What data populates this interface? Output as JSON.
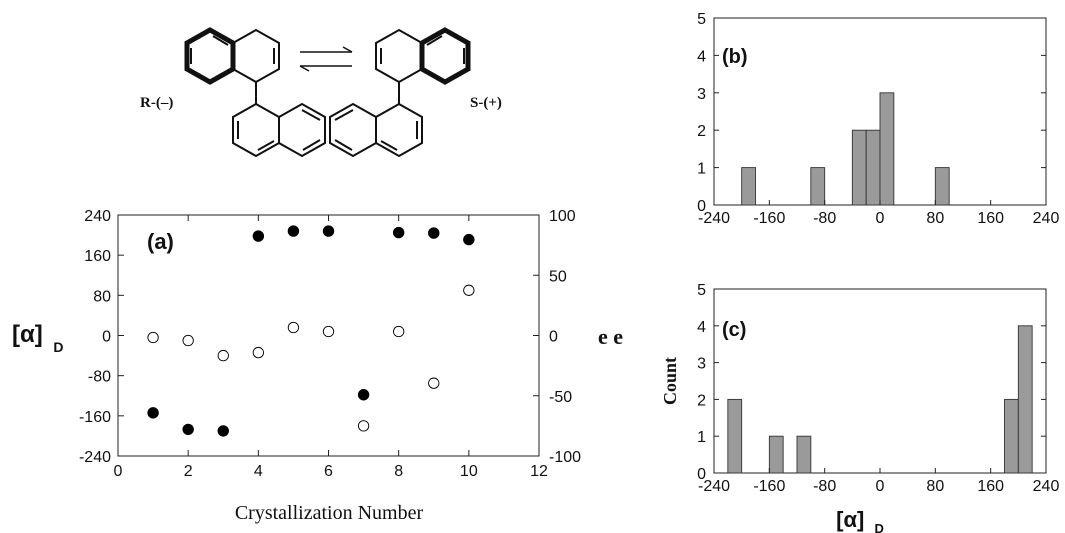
{
  "scheme": {
    "left_label": "R-(–)",
    "right_label": "S-(+)"
  },
  "chart_data": [
    {
      "id": "a",
      "type": "scatter",
      "panel_label": "(a)",
      "xlabel": "Crystallization Number",
      "ylabel_main": "[α]",
      "ylabel_sub": "D",
      "y2label": "e e",
      "xlim": [
        0,
        12
      ],
      "ylim": [
        -240,
        240
      ],
      "y2lim": [
        -100,
        100
      ],
      "x_ticks": [
        0,
        2,
        4,
        6,
        8,
        10,
        12
      ],
      "y_ticks": [
        -240,
        -160,
        -80,
        0,
        80,
        160,
        240
      ],
      "y2_ticks": [
        -100,
        -50,
        0,
        50,
        100
      ],
      "grid": false,
      "series": [
        {
          "marker": "filled",
          "points": [
            {
              "x": 1,
              "y": -154
            },
            {
              "x": 2,
              "y": -187
            },
            {
              "x": 3,
              "y": -190
            },
            {
              "x": 4,
              "y": 198
            },
            {
              "x": 5,
              "y": 208
            },
            {
              "x": 6,
              "y": 208
            },
            {
              "x": 7,
              "y": -118
            },
            {
              "x": 8,
              "y": 205
            },
            {
              "x": 9,
              "y": 204
            },
            {
              "x": 10,
              "y": 191
            }
          ]
        },
        {
          "marker": "open",
          "points": [
            {
              "x": 1,
              "y": -4
            },
            {
              "x": 2,
              "y": -10
            },
            {
              "x": 3,
              "y": -40
            },
            {
              "x": 4,
              "y": -34
            },
            {
              "x": 5,
              "y": 16
            },
            {
              "x": 6,
              "y": 8
            },
            {
              "x": 7,
              "y": -180
            },
            {
              "x": 8,
              "y": 8
            },
            {
              "x": 9,
              "y": -95
            },
            {
              "x": 10,
              "y": 90
            }
          ]
        }
      ]
    },
    {
      "id": "b",
      "type": "bar",
      "panel_label": "(b)",
      "xlim": [
        -240,
        240
      ],
      "ylim": [
        0,
        5
      ],
      "x_ticks": [
        -240,
        -160,
        -80,
        0,
        80,
        160,
        240
      ],
      "y_ticks": [
        0,
        1,
        2,
        3,
        4,
        5
      ],
      "bin_width": 20,
      "bars": [
        {
          "left": -200,
          "count": 1
        },
        {
          "left": -100,
          "count": 1
        },
        {
          "left": -40,
          "count": 2
        },
        {
          "left": -20,
          "count": 2
        },
        {
          "left": 0,
          "count": 3
        },
        {
          "left": 80,
          "count": 1
        }
      ]
    },
    {
      "id": "c",
      "type": "bar",
      "panel_label": "(c)",
      "ylabel": "Count",
      "xlabel_main": "[α]",
      "xlabel_sub": "D",
      "xlim": [
        -240,
        240
      ],
      "ylim": [
        0,
        5
      ],
      "x_ticks": [
        -240,
        -160,
        -80,
        0,
        80,
        160,
        240
      ],
      "y_ticks": [
        0,
        1,
        2,
        3,
        4,
        5
      ],
      "bin_width": 20,
      "bars": [
        {
          "left": -220,
          "count": 2
        },
        {
          "left": -160,
          "count": 1
        },
        {
          "left": -120,
          "count": 1
        },
        {
          "left": 180,
          "count": 2
        },
        {
          "left": 200,
          "count": 4
        }
      ]
    }
  ]
}
